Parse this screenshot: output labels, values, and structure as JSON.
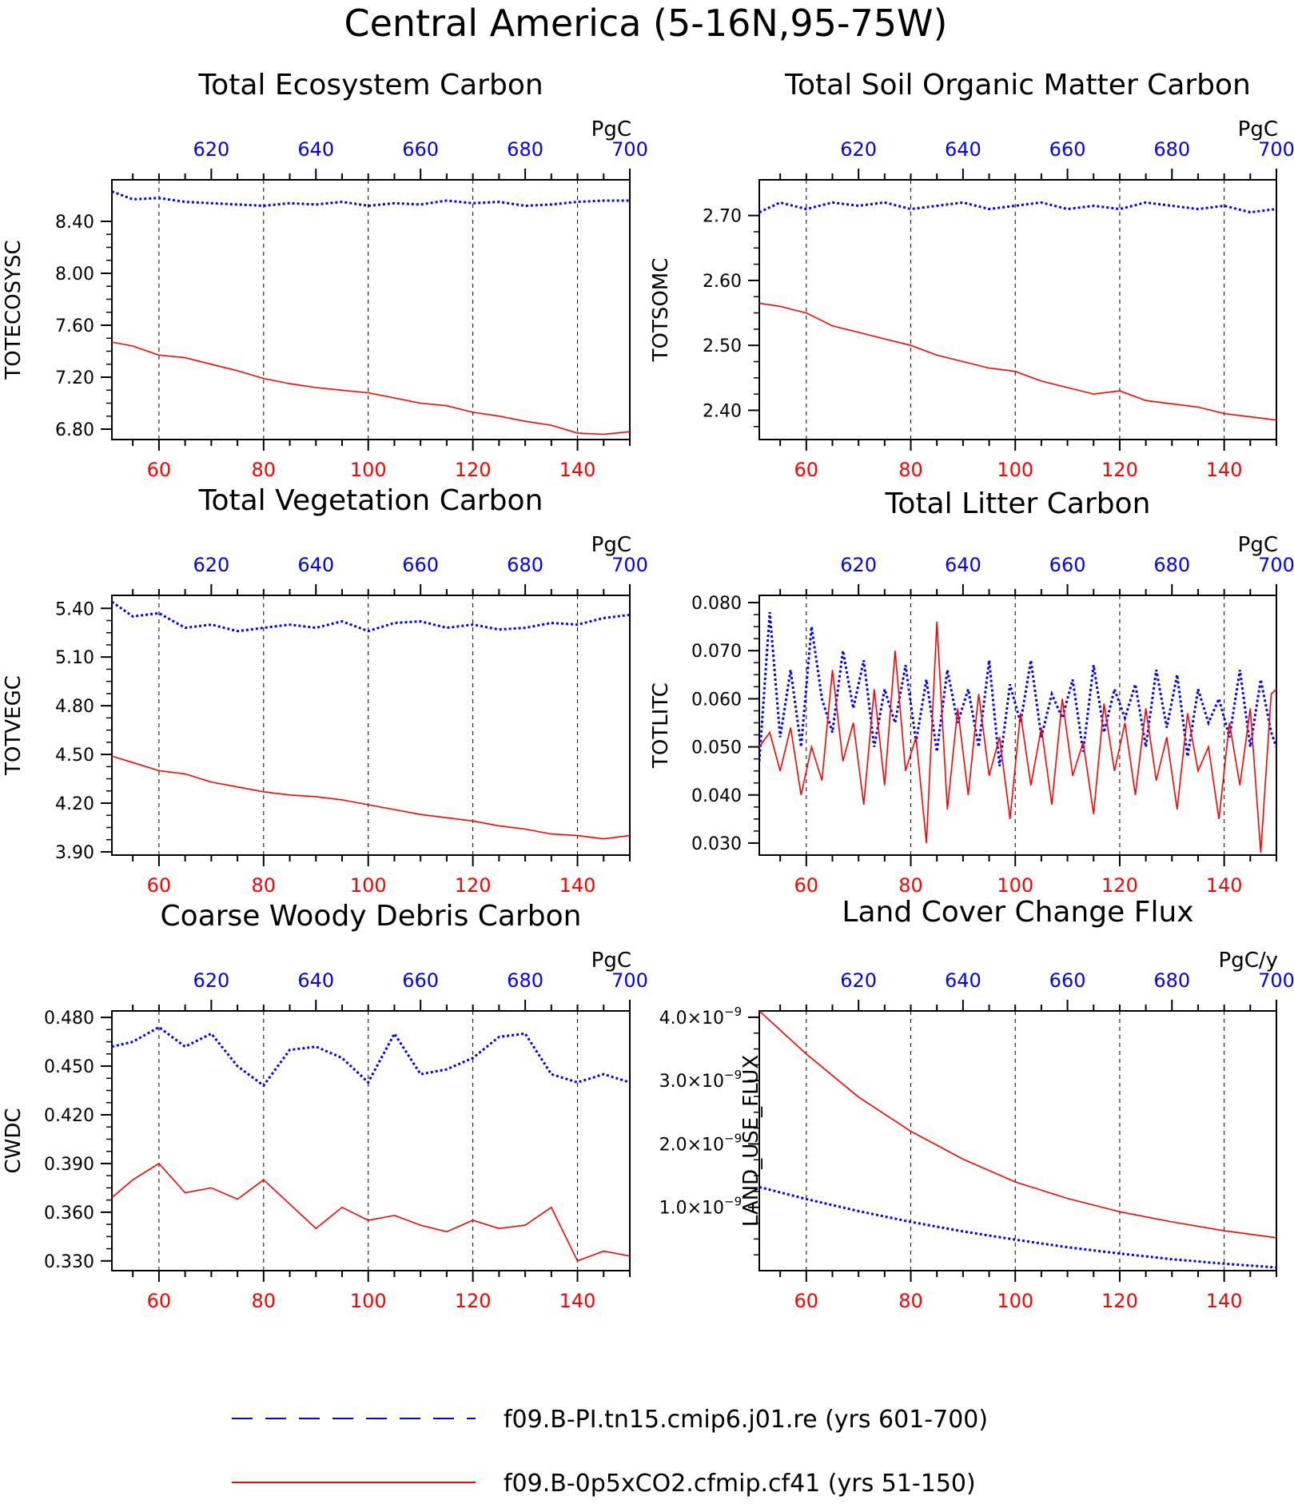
{
  "title": "Central America (5-16N,95-75W)",
  "colors": {
    "series_a": "#0000ff",
    "series_b": "#ff0000",
    "axis": "#000000",
    "grid": "#000000"
  },
  "legend": {
    "placement": "bottom-center",
    "items": [
      {
        "label": "f09.B-PI.tn15.cmip6.j01.re (yrs 601-700)",
        "color": "#0000ff",
        "style": "dashed"
      },
      {
        "label": "f09.B-0p5xCO2.cfmip.cf41 (yrs 51-150)",
        "color": "#ff0000",
        "style": "solid"
      }
    ]
  },
  "chart_data": [
    {
      "id": "totecosysc",
      "type": "line",
      "title": "Total Ecosystem Carbon",
      "ylabel": "TOTECOSYSC",
      "units": "PgC",
      "x_bottom": [
        51,
        150
      ],
      "x_top": [
        601,
        700
      ],
      "ylim": [
        6.72,
        8.72
      ],
      "xticks_bottom": [
        60,
        80,
        100,
        120,
        140
      ],
      "xticks_top": [
        620,
        640,
        660,
        680,
        700
      ],
      "yticks": [
        8.4,
        8.0,
        7.6,
        7.2,
        6.8
      ],
      "ytick_labels": [
        "8.40",
        "8.00",
        "7.60",
        "7.20",
        "6.80"
      ],
      "grid": "vertical dashed",
      "series": [
        {
          "x": [
            601,
            605,
            610,
            615,
            620,
            625,
            630,
            635,
            640,
            645,
            650,
            655,
            660,
            665,
            670,
            675,
            680,
            685,
            690,
            695,
            700
          ],
          "y": [
            8.63,
            8.57,
            8.58,
            8.55,
            8.54,
            8.53,
            8.52,
            8.54,
            8.53,
            8.55,
            8.52,
            8.54,
            8.53,
            8.56,
            8.54,
            8.55,
            8.52,
            8.53,
            8.55,
            8.56,
            8.56
          ]
        },
        {
          "x": [
            51,
            55,
            60,
            65,
            70,
            75,
            80,
            85,
            90,
            95,
            100,
            105,
            110,
            115,
            120,
            125,
            130,
            135,
            140,
            145,
            150
          ],
          "y": [
            7.47,
            7.44,
            7.37,
            7.35,
            7.3,
            7.25,
            7.19,
            7.15,
            7.12,
            7.1,
            7.08,
            7.04,
            7.0,
            6.98,
            6.93,
            6.9,
            6.86,
            6.83,
            6.77,
            6.76,
            6.78
          ]
        }
      ]
    },
    {
      "id": "totsomc",
      "type": "line",
      "title": "Total Soil Organic Matter Carbon",
      "ylabel": "TOTSOMC",
      "units": "PgC",
      "x_bottom": [
        51,
        150
      ],
      "x_top": [
        601,
        700
      ],
      "ylim": [
        2.355,
        2.755
      ],
      "xticks_bottom": [
        60,
        80,
        100,
        120,
        140
      ],
      "xticks_top": [
        620,
        640,
        660,
        680,
        700
      ],
      "yticks": [
        2.7,
        2.6,
        2.5,
        2.4
      ],
      "ytick_labels": [
        "2.70",
        "2.60",
        "2.50",
        "2.40"
      ],
      "grid": "vertical dashed",
      "series": [
        {
          "x": [
            601,
            605,
            610,
            615,
            620,
            625,
            630,
            635,
            640,
            645,
            650,
            655,
            660,
            665,
            670,
            675,
            680,
            685,
            690,
            695,
            700
          ],
          "y": [
            2.705,
            2.72,
            2.71,
            2.72,
            2.715,
            2.72,
            2.71,
            2.715,
            2.72,
            2.71,
            2.715,
            2.72,
            2.71,
            2.715,
            2.71,
            2.72,
            2.715,
            2.71,
            2.715,
            2.705,
            2.71
          ]
        },
        {
          "x": [
            51,
            55,
            60,
            65,
            70,
            75,
            80,
            85,
            90,
            95,
            100,
            105,
            110,
            115,
            120,
            125,
            130,
            135,
            140,
            145,
            150
          ],
          "y": [
            2.565,
            2.56,
            2.55,
            2.53,
            2.52,
            2.51,
            2.5,
            2.485,
            2.475,
            2.465,
            2.46,
            2.445,
            2.435,
            2.425,
            2.43,
            2.415,
            2.41,
            2.405,
            2.395,
            2.39,
            2.385
          ]
        }
      ]
    },
    {
      "id": "totvegc",
      "type": "line",
      "title": "Total Vegetation Carbon",
      "ylabel": "TOTVEGC",
      "units": "PgC",
      "x_bottom": [
        51,
        150
      ],
      "x_top": [
        601,
        700
      ],
      "ylim": [
        3.88,
        5.48
      ],
      "xticks_bottom": [
        60,
        80,
        100,
        120,
        140
      ],
      "xticks_top": [
        620,
        640,
        660,
        680,
        700
      ],
      "yticks": [
        5.4,
        5.1,
        4.8,
        4.5,
        4.2,
        3.9
      ],
      "ytick_labels": [
        "5.40",
        "5.10",
        "4.80",
        "4.50",
        "4.20",
        "3.90"
      ],
      "grid": "vertical dashed",
      "series": [
        {
          "x": [
            601,
            605,
            610,
            615,
            620,
            625,
            630,
            635,
            640,
            645,
            650,
            655,
            660,
            665,
            670,
            675,
            680,
            685,
            690,
            695,
            700
          ],
          "y": [
            5.44,
            5.35,
            5.37,
            5.28,
            5.3,
            5.26,
            5.28,
            5.3,
            5.28,
            5.32,
            5.26,
            5.31,
            5.32,
            5.28,
            5.3,
            5.27,
            5.28,
            5.31,
            5.3,
            5.34,
            5.36
          ]
        },
        {
          "x": [
            51,
            55,
            60,
            65,
            70,
            75,
            80,
            85,
            90,
            95,
            100,
            105,
            110,
            115,
            120,
            125,
            130,
            135,
            140,
            145,
            150
          ],
          "y": [
            4.49,
            4.45,
            4.4,
            4.38,
            4.33,
            4.3,
            4.27,
            4.25,
            4.24,
            4.22,
            4.19,
            4.16,
            4.13,
            4.11,
            4.09,
            4.06,
            4.04,
            4.01,
            4.0,
            3.98,
            4.0
          ]
        }
      ]
    },
    {
      "id": "totlitc",
      "type": "line",
      "title": "Total Litter Carbon",
      "ylabel": "TOTLITC",
      "units": "PgC",
      "x_bottom": [
        51,
        150
      ],
      "x_top": [
        601,
        700
      ],
      "ylim": [
        0.0275,
        0.0815
      ],
      "xticks_bottom": [
        60,
        80,
        100,
        120,
        140
      ],
      "xticks_top": [
        620,
        640,
        660,
        680,
        700
      ],
      "yticks": [
        0.08,
        0.07,
        0.06,
        0.05,
        0.04,
        0.03
      ],
      "ytick_labels": [
        "0.080",
        "0.070",
        "0.060",
        "0.050",
        "0.040",
        "0.030"
      ],
      "grid": "vertical dashed",
      "series": [
        {
          "x": [
            601,
            603,
            605,
            607,
            609,
            611,
            613,
            615,
            617,
            619,
            621,
            623,
            625,
            627,
            629,
            631,
            633,
            635,
            637,
            639,
            641,
            643,
            645,
            647,
            649,
            651,
            653,
            655,
            657,
            659,
            661,
            663,
            665,
            667,
            669,
            671,
            673,
            675,
            677,
            679,
            681,
            683,
            685,
            687,
            689,
            691,
            693,
            695,
            697,
            699,
            700
          ],
          "y": [
            0.047,
            0.078,
            0.052,
            0.066,
            0.05,
            0.075,
            0.06,
            0.053,
            0.07,
            0.058,
            0.068,
            0.05,
            0.062,
            0.055,
            0.067,
            0.051,
            0.064,
            0.049,
            0.066,
            0.055,
            0.062,
            0.05,
            0.068,
            0.046,
            0.063,
            0.055,
            0.068,
            0.052,
            0.061,
            0.056,
            0.064,
            0.049,
            0.067,
            0.053,
            0.062,
            0.056,
            0.063,
            0.05,
            0.066,
            0.054,
            0.065,
            0.048,
            0.062,
            0.055,
            0.06,
            0.052,
            0.066,
            0.05,
            0.064,
            0.053,
            0.05
          ]
        },
        {
          "x": [
            51,
            53,
            55,
            57,
            59,
            61,
            63,
            65,
            67,
            69,
            71,
            73,
            75,
            77,
            79,
            81,
            83,
            85,
            87,
            89,
            91,
            93,
            95,
            97,
            99,
            101,
            103,
            105,
            107,
            109,
            111,
            113,
            115,
            117,
            119,
            121,
            123,
            125,
            127,
            129,
            131,
            133,
            135,
            137,
            139,
            141,
            143,
            145,
            147,
            149,
            150
          ],
          "y": [
            0.05,
            0.053,
            0.045,
            0.054,
            0.04,
            0.05,
            0.043,
            0.066,
            0.047,
            0.055,
            0.038,
            0.062,
            0.042,
            0.07,
            0.045,
            0.052,
            0.03,
            0.076,
            0.037,
            0.058,
            0.04,
            0.061,
            0.044,
            0.052,
            0.035,
            0.057,
            0.042,
            0.054,
            0.038,
            0.06,
            0.044,
            0.051,
            0.036,
            0.059,
            0.045,
            0.055,
            0.04,
            0.058,
            0.043,
            0.052,
            0.037,
            0.057,
            0.045,
            0.05,
            0.035,
            0.055,
            0.042,
            0.058,
            0.028,
            0.061,
            0.062
          ]
        }
      ]
    },
    {
      "id": "cwdc",
      "type": "line",
      "title": "Coarse Woody Debris Carbon",
      "ylabel": "CWDC",
      "units": "PgC",
      "x_bottom": [
        51,
        150
      ],
      "x_top": [
        601,
        700
      ],
      "ylim": [
        0.324,
        0.484
      ],
      "xticks_bottom": [
        60,
        80,
        100,
        120,
        140
      ],
      "xticks_top": [
        620,
        640,
        660,
        680,
        700
      ],
      "yticks": [
        0.48,
        0.45,
        0.42,
        0.39,
        0.36,
        0.33
      ],
      "ytick_labels": [
        "0.480",
        "0.450",
        "0.420",
        "0.390",
        "0.360",
        "0.330"
      ],
      "grid": "vertical dashed",
      "series": [
        {
          "x": [
            601,
            605,
            610,
            615,
            620,
            625,
            630,
            635,
            640,
            645,
            650,
            655,
            660,
            665,
            670,
            675,
            680,
            685,
            690,
            695,
            700
          ],
          "y": [
            0.462,
            0.465,
            0.474,
            0.462,
            0.47,
            0.45,
            0.438,
            0.46,
            0.462,
            0.455,
            0.44,
            0.47,
            0.445,
            0.448,
            0.455,
            0.468,
            0.47,
            0.445,
            0.44,
            0.445,
            0.44
          ]
        },
        {
          "x": [
            51,
            55,
            60,
            65,
            70,
            75,
            80,
            85,
            90,
            95,
            100,
            105,
            110,
            115,
            120,
            125,
            130,
            135,
            140,
            145,
            150
          ],
          "y": [
            0.369,
            0.38,
            0.39,
            0.372,
            0.375,
            0.368,
            0.38,
            0.365,
            0.35,
            0.363,
            0.355,
            0.358,
            0.352,
            0.348,
            0.355,
            0.35,
            0.352,
            0.363,
            0.33,
            0.336,
            0.333
          ]
        }
      ]
    },
    {
      "id": "land_use_flux",
      "type": "line",
      "title": "Land Cover Change Flux",
      "ylabel": "LAND_USE_FLUX",
      "units": "PgC/y",
      "x_bottom": [
        51,
        150
      ],
      "x_top": [
        601,
        700
      ],
      "ylim": [
        0,
        4.1e-09
      ],
      "xticks_bottom": [
        60,
        80,
        100,
        120,
        140
      ],
      "xticks_top": [
        620,
        640,
        660,
        680,
        700
      ],
      "yticks": [
        4e-09,
        3e-09,
        2e-09,
        1e-09
      ],
      "ytick_labels": [
        "4.0×10",
        "3.0×10",
        "2.0×10",
        "1.0×10"
      ],
      "ytick_exponent": "−9",
      "grid": "vertical dashed",
      "series": [
        {
          "x": [
            601,
            610,
            620,
            630,
            640,
            650,
            660,
            670,
            680,
            690,
            700
          ],
          "y": [
            1.32e-09,
            1.13e-09,
            9.4e-10,
            7.7e-10,
            6.2e-10,
            4.9e-10,
            3.7e-10,
            2.7e-10,
            1.8e-10,
            1.1e-10,
            5e-11
          ]
        },
        {
          "x": [
            51,
            60,
            70,
            80,
            90,
            100,
            110,
            120,
            130,
            140,
            150
          ],
          "y": [
            4.1e-09,
            3.42e-09,
            2.74e-09,
            2.2e-09,
            1.76e-09,
            1.4e-09,
            1.14e-09,
            9.3e-10,
            7.7e-10,
            6.3e-10,
            5.2e-10
          ]
        }
      ]
    }
  ]
}
